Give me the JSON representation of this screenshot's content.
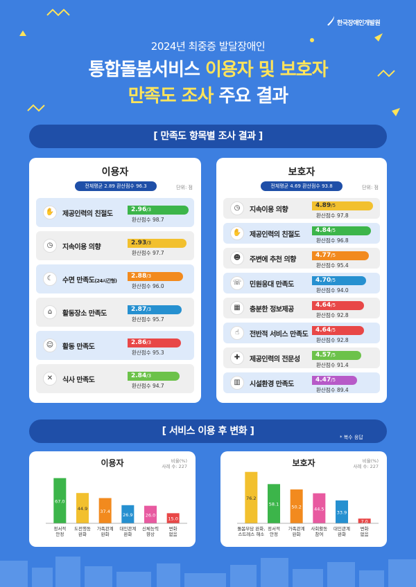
{
  "brand": "한국장애인개발원",
  "header": {
    "subtitle": "2024년 최중증 발달장애인",
    "title_line1_white": "통합돌봄서비스 ",
    "title_line1_yellow": "이용자 및 보호자",
    "title_line2_yellow": "만족도 조사 ",
    "title_line2_white": "주요 결과"
  },
  "section1": {
    "label": "[ 만족도 항목별 조사 결과 ]"
  },
  "users_panel": {
    "title": "이용자",
    "avg": "전체평균 2.89   환산점수 96.3",
    "unit": "단위: 점",
    "items": [
      {
        "icon": "person-hands-icon",
        "glyph": "✋",
        "label": "제공인력의 친절도",
        "score": "2.96",
        "max": "/3",
        "conv": "환산점수 98.7",
        "value": 2.96,
        "color": "#3cb54a",
        "bg": "blue"
      },
      {
        "icon": "clock-icon",
        "glyph": "◷",
        "label": "지속이용 의향",
        "score": "2.93",
        "max": "/3",
        "conv": "환산점수 97.7",
        "value": 2.93,
        "color": "#f2c02e",
        "bg": "gray"
      },
      {
        "icon": "sleep-head-icon",
        "glyph": "☾",
        "label": "수면 만족도",
        "label_small": "(24시간형)",
        "score": "2.88",
        "max": "/3",
        "conv": "환산점수 96.0",
        "value": 2.88,
        "color": "#f28a1e",
        "bg": "blue"
      },
      {
        "icon": "hands-place-icon",
        "glyph": "⌂",
        "label": "활동장소 만족도",
        "score": "2.87",
        "max": "/3",
        "conv": "환산점수 95.7",
        "value": 2.87,
        "color": "#2690d0",
        "bg": "gray"
      },
      {
        "icon": "activity-person-icon",
        "glyph": "☺",
        "label": "활동 만족도",
        "score": "2.86",
        "max": "/3",
        "conv": "환산점수 95.3",
        "value": 2.86,
        "color": "#e84747",
        "bg": "blue"
      },
      {
        "icon": "fork-spoon-icon",
        "glyph": "✕",
        "label": "식사 만족도",
        "score": "2.84",
        "max": "/3",
        "conv": "환산점수 94.7",
        "value": 2.84,
        "color": "#6cc24a",
        "bg": "gray"
      }
    ]
  },
  "guardians_panel": {
    "title": "보호자",
    "avg": "전체평균 4.69   환산점수 93.8",
    "unit": "단위: 점",
    "items": [
      {
        "icon": "clock-icon",
        "glyph": "◷",
        "label": "지속이용 의향",
        "score": "4.89",
        "max": "/5",
        "conv": "환산점수 97.8",
        "value": 4.89,
        "color": "#f2c02e",
        "bg": "gray"
      },
      {
        "icon": "person-hands-icon",
        "glyph": "✋",
        "label": "제공인력의 친절도",
        "score": "4.84",
        "max": "/5",
        "conv": "환산점수 96.8",
        "value": 4.84,
        "color": "#3cb54a",
        "bg": "blue"
      },
      {
        "icon": "recommend-people-icon",
        "glyph": "☻",
        "label": "주변에 추천 의향",
        "score": "4.77",
        "max": "/5",
        "conv": "환산점수 95.4",
        "value": 4.77,
        "color": "#f28a1e",
        "bg": "gray"
      },
      {
        "icon": "service-desk-icon",
        "glyph": "☏",
        "label": "민원응대 만족도",
        "score": "4.70",
        "max": "/5",
        "conv": "환산점수 94.0",
        "value": 4.7,
        "color": "#2690d0",
        "bg": "blue"
      },
      {
        "icon": "presentation-icon",
        "glyph": "▦",
        "label": "충분한 정보제공",
        "score": "4.64",
        "max": "/5",
        "conv": "환산점수 92.8",
        "value": 4.64,
        "color": "#e84747",
        "bg": "gray"
      },
      {
        "icon": "thumbs-up-icon",
        "glyph": "☝",
        "label": "전반적 서비스 만족도",
        "score": "4.64",
        "max": "/5",
        "conv": "환산점수 92.8",
        "value": 4.64,
        "color": "#e84747",
        "bg": "blue"
      },
      {
        "icon": "expert-staff-icon",
        "glyph": "✚",
        "label": "제공인력의 전문성",
        "score": "4.57",
        "max": "/5",
        "conv": "환산점수 91.4",
        "value": 4.57,
        "color": "#6cc24a",
        "bg": "gray"
      },
      {
        "icon": "building-icon",
        "glyph": "▥",
        "label": "시설환경 만족도",
        "score": "4.47",
        "max": "/5",
        "conv": "환산점수 89.4",
        "value": 4.47,
        "color": "#b75ac8",
        "bg": "blue"
      }
    ]
  },
  "section2": {
    "label": "[ 서비스 이용 후 변화 ]",
    "note": "* 복수 응답"
  },
  "chart_data": [
    {
      "type": "bar",
      "title": "이용자",
      "unit_note": "비율(%)",
      "n_note": "사례 수: 227",
      "categories": [
        "정서적\n안정",
        "도전행동\n완화",
        "가족관계\n완화",
        "대인관계\n완화",
        "신체능력\n향상",
        "변화\n없음"
      ],
      "values": [
        67.0,
        44.9,
        37.4,
        26.9,
        26.0,
        15.0
      ],
      "labels": [
        "67.0",
        "44.9",
        "37.4",
        "26.9",
        "26.0",
        "15.0"
      ],
      "colors": [
        "#3cb54a",
        "#f2c02e",
        "#f28a1e",
        "#2690d0",
        "#e85aa0",
        "#e84747"
      ],
      "ylim": [
        0,
        80
      ]
    },
    {
      "type": "bar",
      "title": "보호자",
      "unit_note": "비율(%)",
      "n_note": "사례 수: 227",
      "categories": [
        "돌봄부담 완화,\n스트레스 해소",
        "정서적\n안정",
        "가족관계\n완화",
        "사회활동\n참여",
        "대인관계\n완화",
        "변화\n없음"
      ],
      "values": [
        76.2,
        58.1,
        50.2,
        44.5,
        33.9,
        7.0
      ],
      "labels": [
        "76.2",
        "58.1",
        "50.2",
        "44.5",
        "33.9",
        "7.0"
      ],
      "colors": [
        "#f2c02e",
        "#3cb54a",
        "#f28a1e",
        "#e85aa0",
        "#2690d0",
        "#e84747"
      ],
      "ylim": [
        0,
        80
      ]
    }
  ]
}
